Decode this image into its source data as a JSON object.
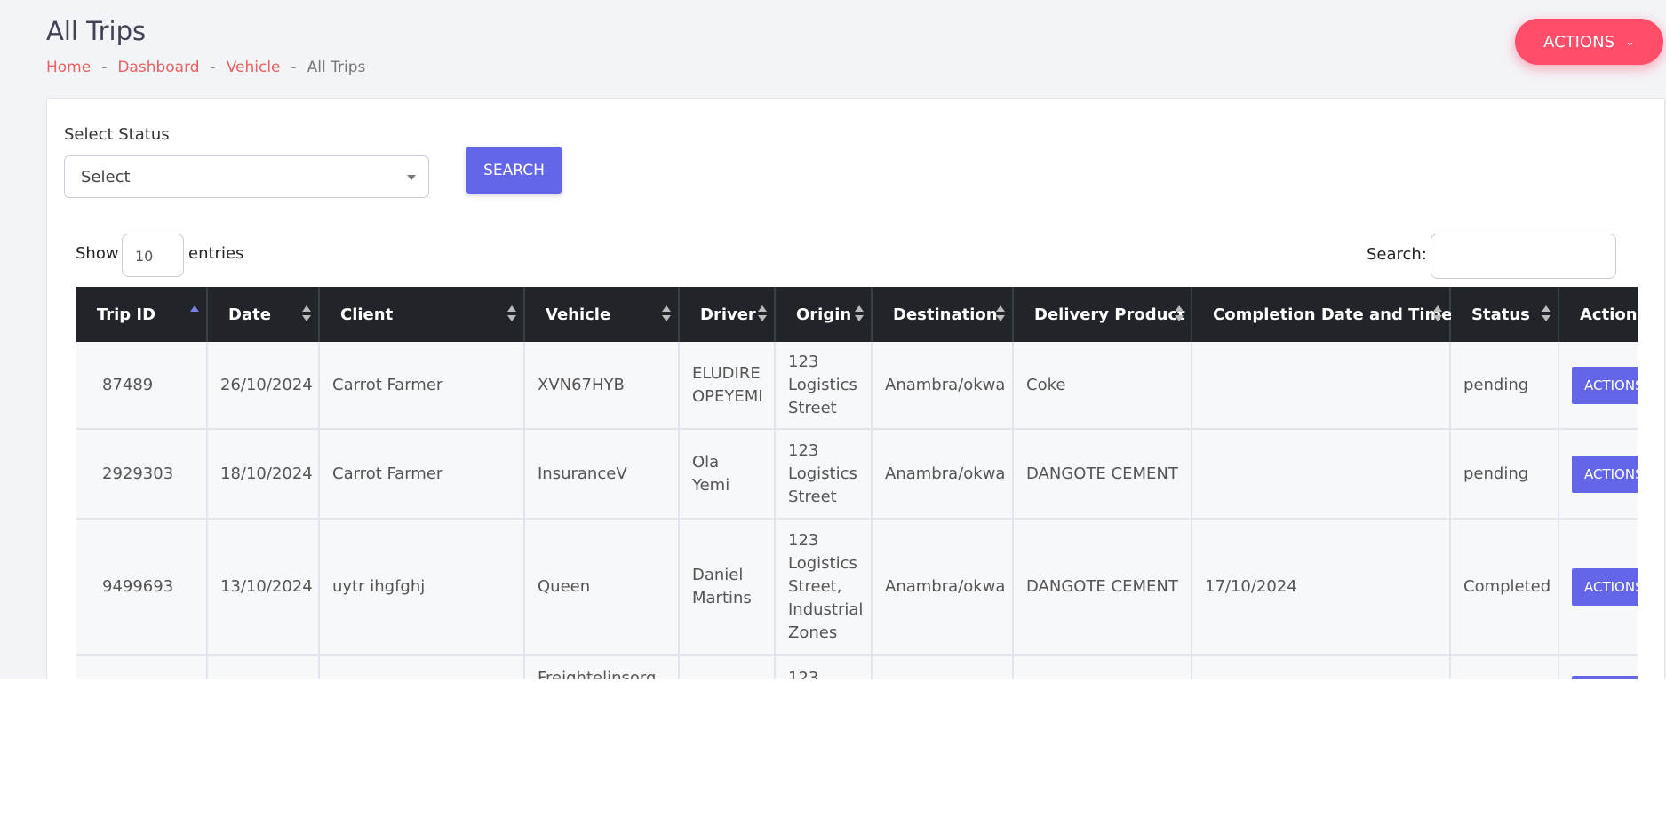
{
  "header": {
    "title": "All Trips",
    "breadcrumb": [
      "Home",
      "Dashboard",
      "Vehicle",
      "All Trips"
    ],
    "actions_button": "ACTIONS"
  },
  "filter": {
    "label": "Select Status",
    "select_placeholder": "Select",
    "search_button": "SEARCH"
  },
  "table_controls": {
    "show_label": "Show",
    "length_value": "10",
    "entries_label": "entries",
    "search_label": "Search:"
  },
  "table": {
    "columns": [
      {
        "key": "trip_id",
        "label": "Trip ID"
      },
      {
        "key": "date",
        "label": "Date"
      },
      {
        "key": "client",
        "label": "Client"
      },
      {
        "key": "vehicle",
        "label": "Vehicle"
      },
      {
        "key": "driver",
        "label": "Driver"
      },
      {
        "key": "origin",
        "label": "Origin"
      },
      {
        "key": "destination",
        "label": "Destination"
      },
      {
        "key": "product",
        "label": "Delivery Product"
      },
      {
        "key": "completion",
        "label": "Completion Date and Time"
      },
      {
        "key": "status",
        "label": "Status"
      },
      {
        "key": "actions",
        "label": "Actions"
      }
    ],
    "row_action": "ACTIONS",
    "rows": [
      {
        "trip_id": "87489",
        "date": "26/10/2024",
        "client": "Carrot Farmer",
        "vehicle": "XVN67HYB",
        "driver": "ELUDIRE OPEYEMI",
        "origin": "123 Logistics Street",
        "destination": "Anambra/okwa",
        "product": "Coke",
        "status": "pending"
      },
      {
        "trip_id": "2929303",
        "date": "18/10/2024",
        "client": "Carrot Farmer",
        "vehicle": "InsuranceV",
        "driver": "Ola Yemi",
        "origin": "123 Logistics Street",
        "destination": "Anambra/okwa",
        "product": "DANGOTE CEMENT",
        "status": "pending"
      },
      {
        "trip_id": "9499693",
        "date": "13/10/2024",
        "client": "uytr ihgfghj",
        "vehicle": "Queen",
        "driver": "Daniel Martins",
        "origin": "123 Logistics Street, Industrial Zones",
        "destination": "Anambra/okwa",
        "product": "DANGOTE CEMENT",
        "completion": "17/10/2024",
        "status": "Completed"
      },
      {
        "vehicle": "Freightelinsorg",
        "origin": "123"
      }
    ]
  }
}
